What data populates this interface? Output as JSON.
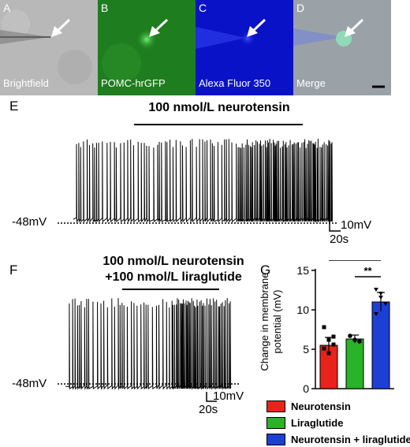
{
  "panels": [
    {
      "letter": "A",
      "caption": "Brightfield",
      "bg": "#b8b8b8"
    },
    {
      "letter": "B",
      "caption": "POMC-hrGFP",
      "bg": "#1e7d1e"
    },
    {
      "letter": "C",
      "caption": "Alexa Fluor 350",
      "bg": "#0a12c8"
    },
    {
      "letter": "D",
      "caption": "Merge",
      "bg": "#9aa2a8"
    }
  ],
  "traceE": {
    "letter": "E",
    "drug": "100 nmol/L neurotensin",
    "baseline": "-48mV",
    "vscale": "10mV",
    "tscale": "20s"
  },
  "traceF": {
    "letter": "F",
    "drug_line1": "100 nmol/L neurotensin",
    "drug_line2": "+100 nmol/L liraglutide",
    "baseline": "-48mV",
    "vscale": "10mV",
    "tscale": "20s"
  },
  "chart_data": {
    "type": "bar",
    "letter": "G",
    "ylabel": "Change in membrane potential (mV)",
    "ylabel_lines": [
      "Change in membrane",
      "potential (mV)"
    ],
    "ylim": [
      0,
      15
    ],
    "yticks": [
      0,
      5,
      10,
      15
    ],
    "categories": [
      "Neurotensin",
      "Liraglutide",
      "Neurotensin + liraglutide"
    ],
    "values": [
      5.5,
      6.3,
      11.0
    ],
    "errors": [
      1.0,
      0.5,
      1.2
    ],
    "colors": [
      "#e8231c",
      "#28b328",
      "#1d3fd6"
    ],
    "points": [
      [
        7.8,
        6.2,
        5.6,
        5.1,
        4.5,
        6.6
      ],
      [
        6.7,
        6.2,
        6.0
      ],
      [
        12.6,
        11.6,
        10.8,
        9.5,
        12.1
      ]
    ],
    "significance": [
      {
        "from": 0,
        "to": 2,
        "label": "****"
      },
      {
        "from": 1,
        "to": 2,
        "label": "**"
      }
    ]
  }
}
